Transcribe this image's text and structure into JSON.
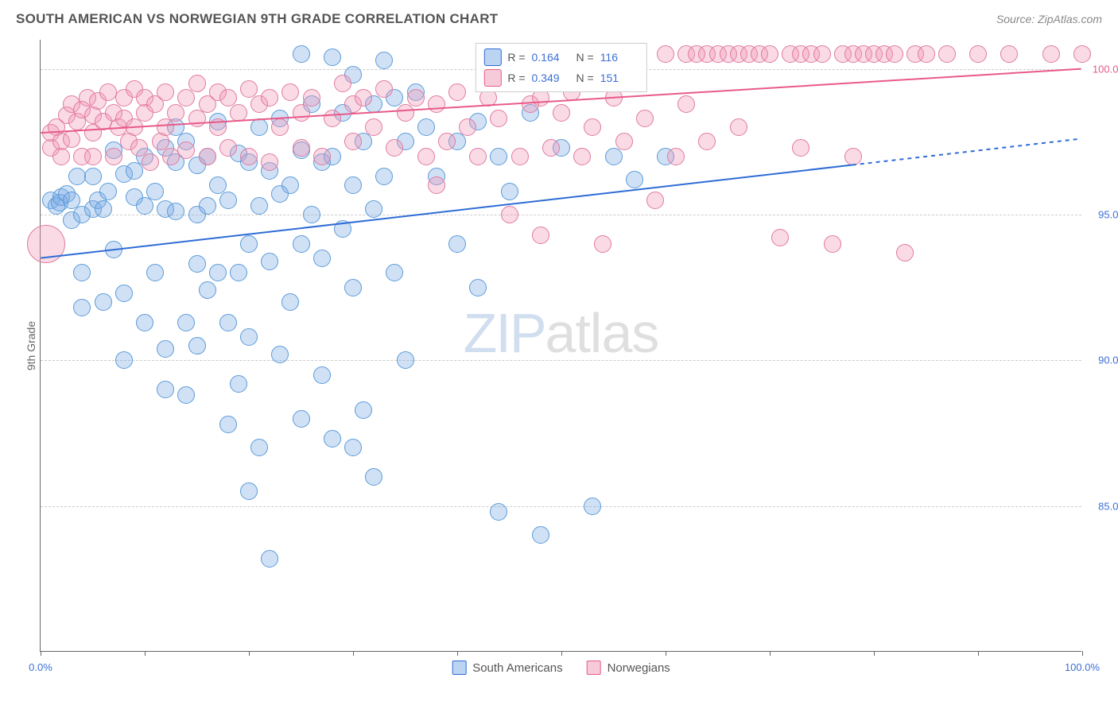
{
  "header": {
    "title": "SOUTH AMERICAN VS NORWEGIAN 9TH GRADE CORRELATION CHART",
    "source": "Source: ZipAtlas.com"
  },
  "chart": {
    "type": "scatter",
    "y_axis_label": "9th Grade",
    "background_color": "#ffffff",
    "grid_color": "#cccccc",
    "axis_color": "#666666",
    "xlim": [
      0,
      100
    ],
    "ylim": [
      80,
      101
    ],
    "x_ticks": [
      0,
      10,
      20,
      30,
      40,
      50,
      60,
      70,
      80,
      90,
      100
    ],
    "x_tick_labels": {
      "0": "0.0%",
      "100": "100.0%"
    },
    "x_tick_label_color": "#3b6fd8",
    "y_ticks": [
      {
        "value": 85,
        "label": "85.0%",
        "color": "#3b6fd8"
      },
      {
        "value": 90,
        "label": "90.0%",
        "color": "#3b6fd8"
      },
      {
        "value": 95,
        "label": "95.0%",
        "color": "#3b6fd8"
      },
      {
        "value": 100,
        "label": "100.0%",
        "color": "#e85a8a"
      }
    ],
    "series": [
      {
        "name": "South Americans",
        "marker_fill": "rgba(120,170,230,0.35)",
        "marker_stroke": "#5a9bd8",
        "marker_radius": 11,
        "trend_color": "#2e6cd6",
        "trend_width": 2,
        "trend": {
          "x1": 0,
          "y1": 93.5,
          "x2": 100,
          "y2": 97.6,
          "solid_until_x": 78
        },
        "R": "0.164",
        "N": "116",
        "points": [
          [
            1,
            95.5
          ],
          [
            1.5,
            95.3
          ],
          [
            1.8,
            95.4
          ],
          [
            2,
            95.6
          ],
          [
            2.5,
            95.7
          ],
          [
            3,
            95.5
          ],
          [
            3,
            94.8
          ],
          [
            3.5,
            96.3
          ],
          [
            4,
            95.0
          ],
          [
            4,
            93.0
          ],
          [
            4,
            91.8
          ],
          [
            5,
            95.2
          ],
          [
            5,
            96.3
          ],
          [
            5.5,
            95.5
          ],
          [
            6,
            95.2
          ],
          [
            6,
            92.0
          ],
          [
            6.5,
            95.8
          ],
          [
            7,
            97.2
          ],
          [
            7,
            93.8
          ],
          [
            8,
            96.4
          ],
          [
            8,
            92.3
          ],
          [
            8,
            90.0
          ],
          [
            9,
            96.5
          ],
          [
            9,
            95.6
          ],
          [
            10,
            95.3
          ],
          [
            10,
            97.0
          ],
          [
            10,
            91.3
          ],
          [
            11,
            95.8
          ],
          [
            11,
            93.0
          ],
          [
            12,
            97.3
          ],
          [
            12,
            95.2
          ],
          [
            12,
            90.4
          ],
          [
            12,
            89.0
          ],
          [
            13,
            96.8
          ],
          [
            13,
            98.0
          ],
          [
            13,
            95.1
          ],
          [
            14,
            97.5
          ],
          [
            14,
            91.3
          ],
          [
            14,
            88.8
          ],
          [
            15,
            95.0
          ],
          [
            15,
            96.7
          ],
          [
            15,
            93.3
          ],
          [
            15,
            90.5
          ],
          [
            16,
            97.0
          ],
          [
            16,
            95.3
          ],
          [
            16,
            92.4
          ],
          [
            17,
            98.2
          ],
          [
            17,
            96.0
          ],
          [
            17,
            93.0
          ],
          [
            18,
            95.5
          ],
          [
            18,
            91.3
          ],
          [
            18,
            87.8
          ],
          [
            19,
            97.1
          ],
          [
            19,
            93.0
          ],
          [
            19,
            89.2
          ],
          [
            20,
            96.8
          ],
          [
            20,
            94.0
          ],
          [
            20,
            90.8
          ],
          [
            20,
            85.5
          ],
          [
            21,
            98.0
          ],
          [
            21,
            95.3
          ],
          [
            21,
            87.0
          ],
          [
            22,
            96.5
          ],
          [
            22,
            93.4
          ],
          [
            22,
            83.2
          ],
          [
            23,
            98.3
          ],
          [
            23,
            95.7
          ],
          [
            23,
            90.2
          ],
          [
            24,
            96.0
          ],
          [
            24,
            92.0
          ],
          [
            25,
            100.5
          ],
          [
            25,
            97.2
          ],
          [
            25,
            94.0
          ],
          [
            25,
            88.0
          ],
          [
            26,
            98.8
          ],
          [
            26,
            95.0
          ],
          [
            27,
            96.8
          ],
          [
            27,
            93.5
          ],
          [
            27,
            89.5
          ],
          [
            28,
            100.4
          ],
          [
            28,
            97.0
          ],
          [
            28,
            87.3
          ],
          [
            29,
            98.5
          ],
          [
            29,
            94.5
          ],
          [
            30,
            99.8
          ],
          [
            30,
            96.0
          ],
          [
            30,
            92.5
          ],
          [
            30,
            87.0
          ],
          [
            31,
            97.5
          ],
          [
            31,
            88.3
          ],
          [
            32,
            98.8
          ],
          [
            32,
            95.2
          ],
          [
            32,
            86.0
          ],
          [
            33,
            100.3
          ],
          [
            33,
            96.3
          ],
          [
            34,
            99.0
          ],
          [
            34,
            93.0
          ],
          [
            35,
            97.5
          ],
          [
            35,
            90.0
          ],
          [
            36,
            99.2
          ],
          [
            37,
            98.0
          ],
          [
            38,
            96.3
          ],
          [
            40,
            97.5
          ],
          [
            40,
            94.0
          ],
          [
            42,
            98.2
          ],
          [
            42,
            92.5
          ],
          [
            44,
            97.0
          ],
          [
            44,
            84.8
          ],
          [
            45,
            95.8
          ],
          [
            47,
            98.5
          ],
          [
            48,
            84.0
          ],
          [
            50,
            97.3
          ],
          [
            53,
            85.0
          ],
          [
            55,
            97.0
          ],
          [
            57,
            96.2
          ],
          [
            60,
            97.0
          ]
        ]
      },
      {
        "name": "Norwegians",
        "marker_fill": "rgba(240,150,180,0.35)",
        "marker_stroke": "#e07aa0",
        "marker_radius": 11,
        "trend_color": "#e85a8a",
        "trend_width": 2,
        "trend": {
          "x1": 0,
          "y1": 97.8,
          "x2": 100,
          "y2": 100.0,
          "solid_until_x": 100
        },
        "R": "0.349",
        "N": "151",
        "points": [
          [
            0.5,
            94.0,
            24
          ],
          [
            1,
            97.3
          ],
          [
            1,
            97.8
          ],
          [
            1.5,
            98.0
          ],
          [
            2,
            97.5
          ],
          [
            2,
            97.0
          ],
          [
            2.5,
            98.4
          ],
          [
            3,
            98.8
          ],
          [
            3,
            97.6
          ],
          [
            3.5,
            98.2
          ],
          [
            4,
            97.0
          ],
          [
            4,
            98.6
          ],
          [
            4.5,
            99.0
          ],
          [
            5,
            98.4
          ],
          [
            5,
            97.8
          ],
          [
            5,
            97.0
          ],
          [
            5.5,
            98.9
          ],
          [
            6,
            98.2
          ],
          [
            6.5,
            99.2
          ],
          [
            7,
            98.5
          ],
          [
            7,
            97.0
          ],
          [
            7.5,
            98.0
          ],
          [
            8,
            99.0
          ],
          [
            8,
            98.3
          ],
          [
            8.5,
            97.5
          ],
          [
            9,
            99.3
          ],
          [
            9,
            98.0
          ],
          [
            9.5,
            97.3
          ],
          [
            10,
            99.0
          ],
          [
            10,
            98.5
          ],
          [
            10.5,
            96.8
          ],
          [
            11,
            98.8
          ],
          [
            11.5,
            97.5
          ],
          [
            12,
            99.2
          ],
          [
            12,
            98.0
          ],
          [
            12.5,
            97.0
          ],
          [
            13,
            98.5
          ],
          [
            14,
            99.0
          ],
          [
            14,
            97.2
          ],
          [
            15,
            98.3
          ],
          [
            15,
            99.5
          ],
          [
            16,
            97.0
          ],
          [
            16,
            98.8
          ],
          [
            17,
            99.2
          ],
          [
            17,
            98.0
          ],
          [
            18,
            97.3
          ],
          [
            18,
            99.0
          ],
          [
            19,
            98.5
          ],
          [
            20,
            99.3
          ],
          [
            20,
            97.0
          ],
          [
            21,
            98.8
          ],
          [
            22,
            99.0
          ],
          [
            22,
            96.8
          ],
          [
            23,
            98.0
          ],
          [
            24,
            99.2
          ],
          [
            25,
            97.3
          ],
          [
            25,
            98.5
          ],
          [
            26,
            99.0
          ],
          [
            27,
            97.0
          ],
          [
            28,
            98.3
          ],
          [
            29,
            99.5
          ],
          [
            30,
            97.5
          ],
          [
            30,
            98.8
          ],
          [
            31,
            99.0
          ],
          [
            32,
            98.0
          ],
          [
            33,
            99.3
          ],
          [
            34,
            97.3
          ],
          [
            35,
            98.5
          ],
          [
            36,
            99.0
          ],
          [
            37,
            97.0
          ],
          [
            38,
            96.0
          ],
          [
            38,
            98.8
          ],
          [
            39,
            97.5
          ],
          [
            40,
            99.2
          ],
          [
            41,
            98.0
          ],
          [
            42,
            97.0
          ],
          [
            43,
            99.0
          ],
          [
            44,
            98.3
          ],
          [
            45,
            95.0
          ],
          [
            45,
            99.5
          ],
          [
            46,
            97.0
          ],
          [
            47,
            98.8
          ],
          [
            48,
            99.0
          ],
          [
            48,
            94.3
          ],
          [
            49,
            97.3
          ],
          [
            50,
            98.5
          ],
          [
            51,
            99.2
          ],
          [
            52,
            97.0
          ],
          [
            53,
            98.0
          ],
          [
            54,
            94.0
          ],
          [
            55,
            99.0
          ],
          [
            56,
            97.5
          ],
          [
            57,
            100.5
          ],
          [
            58,
            98.3
          ],
          [
            59,
            95.5
          ],
          [
            60,
            100.5
          ],
          [
            61,
            97.0
          ],
          [
            62,
            100.5
          ],
          [
            62,
            98.8
          ],
          [
            63,
            100.5
          ],
          [
            64,
            100.5
          ],
          [
            64,
            97.5
          ],
          [
            65,
            100.5
          ],
          [
            66,
            100.5
          ],
          [
            67,
            100.5
          ],
          [
            67,
            98.0
          ],
          [
            68,
            100.5
          ],
          [
            69,
            100.5
          ],
          [
            70,
            100.5
          ],
          [
            71,
            94.2
          ],
          [
            72,
            100.5
          ],
          [
            73,
            100.5
          ],
          [
            73,
            97.3
          ],
          [
            74,
            100.5
          ],
          [
            75,
            100.5
          ],
          [
            76,
            94.0
          ],
          [
            77,
            100.5
          ],
          [
            78,
            100.5
          ],
          [
            78,
            97.0
          ],
          [
            79,
            100.5
          ],
          [
            80,
            100.5
          ],
          [
            81,
            100.5
          ],
          [
            82,
            100.5
          ],
          [
            83,
            93.7
          ],
          [
            84,
            100.5
          ],
          [
            85,
            100.5
          ],
          [
            87,
            100.5
          ],
          [
            90,
            100.5
          ],
          [
            93,
            100.5
          ],
          [
            97,
            100.5
          ],
          [
            100,
            100.5
          ]
        ]
      }
    ],
    "watermark": {
      "text1": "ZIP",
      "text2": "atlas"
    },
    "legend_box": {
      "swatch1_fill": "rgba(120,170,230,0.5)",
      "swatch1_stroke": "#2e6cd6",
      "swatch2_fill": "rgba(240,150,180,0.5)",
      "swatch2_stroke": "#e85a8a",
      "r_label": "R =",
      "n_label": "N ="
    },
    "bottom_legend": {
      "items": [
        {
          "label": "South Americans",
          "fill": "rgba(120,170,230,0.5)",
          "stroke": "#2e6cd6"
        },
        {
          "label": "Norwegians",
          "fill": "rgba(240,150,180,0.5)",
          "stroke": "#e85a8a"
        }
      ]
    }
  }
}
